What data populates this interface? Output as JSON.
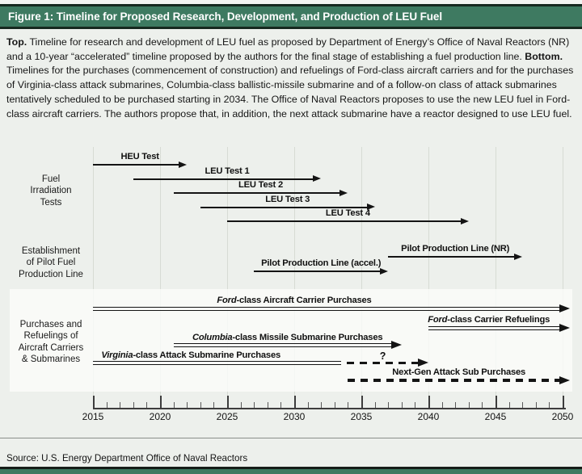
{
  "header": {
    "title": "Figure 1: Timeline for Proposed Research, Development, and Production of LEU Fuel"
  },
  "caption": {
    "top_label": "Top.",
    "top_text": " Timeline for research and development of LEU fuel as proposed by Department of Energy’s Office of Naval Reactors (NR) and a 10-year “accelerated” timeline proposed by the authors for the final stage of establishing a fuel production line. ",
    "bottom_label": "Bottom.",
    "bottom_text": " Timelines for the purchases (commencement of construction) and refuelings of Ford-class aircraft carriers and for the purchases of Virginia-class attack submarines, Columbia-class ballistic-missile submarine and of a follow-on class of attack submarines tentatively scheduled to be purchased starting in 2034. The Office of Naval Reactors proposes to use the new LEU fuel in Ford-class aircraft carriers. The authors propose that, in addition, the next attack submarine have a reactor designed to use LEU fuel."
  },
  "source": {
    "text": "Source: U.S. Energy Department Office of Naval Reactors"
  },
  "colors": {
    "header_green": "#3e7a61",
    "border_dark": "#16291f",
    "body_bg": "#edf0ec",
    "panel_white": "#fbfcfa",
    "ink": "#141414",
    "gridline": "#d7dbd4"
  },
  "chart_data": {
    "type": "timeline",
    "x_axis": {
      "range": [
        2015,
        2050
      ],
      "major_ticks": [
        2015,
        2020,
        2025,
        2030,
        2035,
        2040,
        2045,
        2050
      ],
      "minor_tick_interval": 1,
      "grid": "vertical-at-major-ticks"
    },
    "row_groups": [
      {
        "label_lines": [
          "Fuel",
          "Irradiation",
          "Tests"
        ]
      },
      {
        "label_lines": [
          "Establishment",
          "of Pilot Fuel",
          "Production Line"
        ]
      },
      {
        "label_lines": [
          "Purchases and",
          "Refuelings of",
          "Aircraft Carriers",
          "& Submarines"
        ]
      }
    ],
    "series": [
      {
        "group": 0,
        "italic_prefix": "",
        "label": "HEU Test",
        "start": 2015,
        "end": 2022,
        "style": "single"
      },
      {
        "group": 0,
        "italic_prefix": "",
        "label": "LEU Test 1",
        "start": 2018,
        "end": 2032,
        "style": "single"
      },
      {
        "group": 0,
        "italic_prefix": "",
        "label": "LEU Test 2",
        "start": 2021,
        "end": 2034,
        "style": "single"
      },
      {
        "group": 0,
        "italic_prefix": "",
        "label": "LEU Test 3",
        "start": 2023,
        "end": 2036,
        "style": "single"
      },
      {
        "group": 0,
        "italic_prefix": "",
        "label": "LEU Test 4",
        "start": 2025,
        "end": 2043,
        "style": "single"
      },
      {
        "group": 1,
        "italic_prefix": "",
        "label": "Pilot Production Line (NR)",
        "start": 2037,
        "end": 2047,
        "style": "single"
      },
      {
        "group": 1,
        "italic_prefix": "",
        "label": "Pilot Production Line (accel.)",
        "start": 2027,
        "end": 2037,
        "style": "single"
      },
      {
        "group": 2,
        "italic_prefix": "Ford",
        "label": "-class Aircraft Carrier Purchases",
        "start": 2015,
        "end": 2050,
        "beyond_axis": true,
        "style": "double",
        "label_center_year": 2030
      },
      {
        "group": 2,
        "italic_prefix": "Ford",
        "label": "-class Carrier Refuelings",
        "start": 2040,
        "end": 2050,
        "beyond_axis": true,
        "style": "double",
        "label_center_year": 2044.5
      },
      {
        "group": 2,
        "italic_prefix": "Columbia",
        "label": "-class Missile Submarine Purchases",
        "start": 2021,
        "end": 2038,
        "style": "double"
      },
      {
        "group": 2,
        "italic_prefix": "Virginia",
        "label": "-class Attack Submarine Purchases",
        "start": 2015,
        "end": 2040,
        "solid_until": 2033.5,
        "style": "double_then_dashed",
        "annotation": "?",
        "annotation_year": 2036.6,
        "label_center_year": 2022.3
      },
      {
        "group": 2,
        "italic_prefix": "",
        "label": "Next-Gen Attack Sub Purchases",
        "start": 2034,
        "end": 2050,
        "beyond_axis": true,
        "style": "dashed"
      }
    ]
  }
}
